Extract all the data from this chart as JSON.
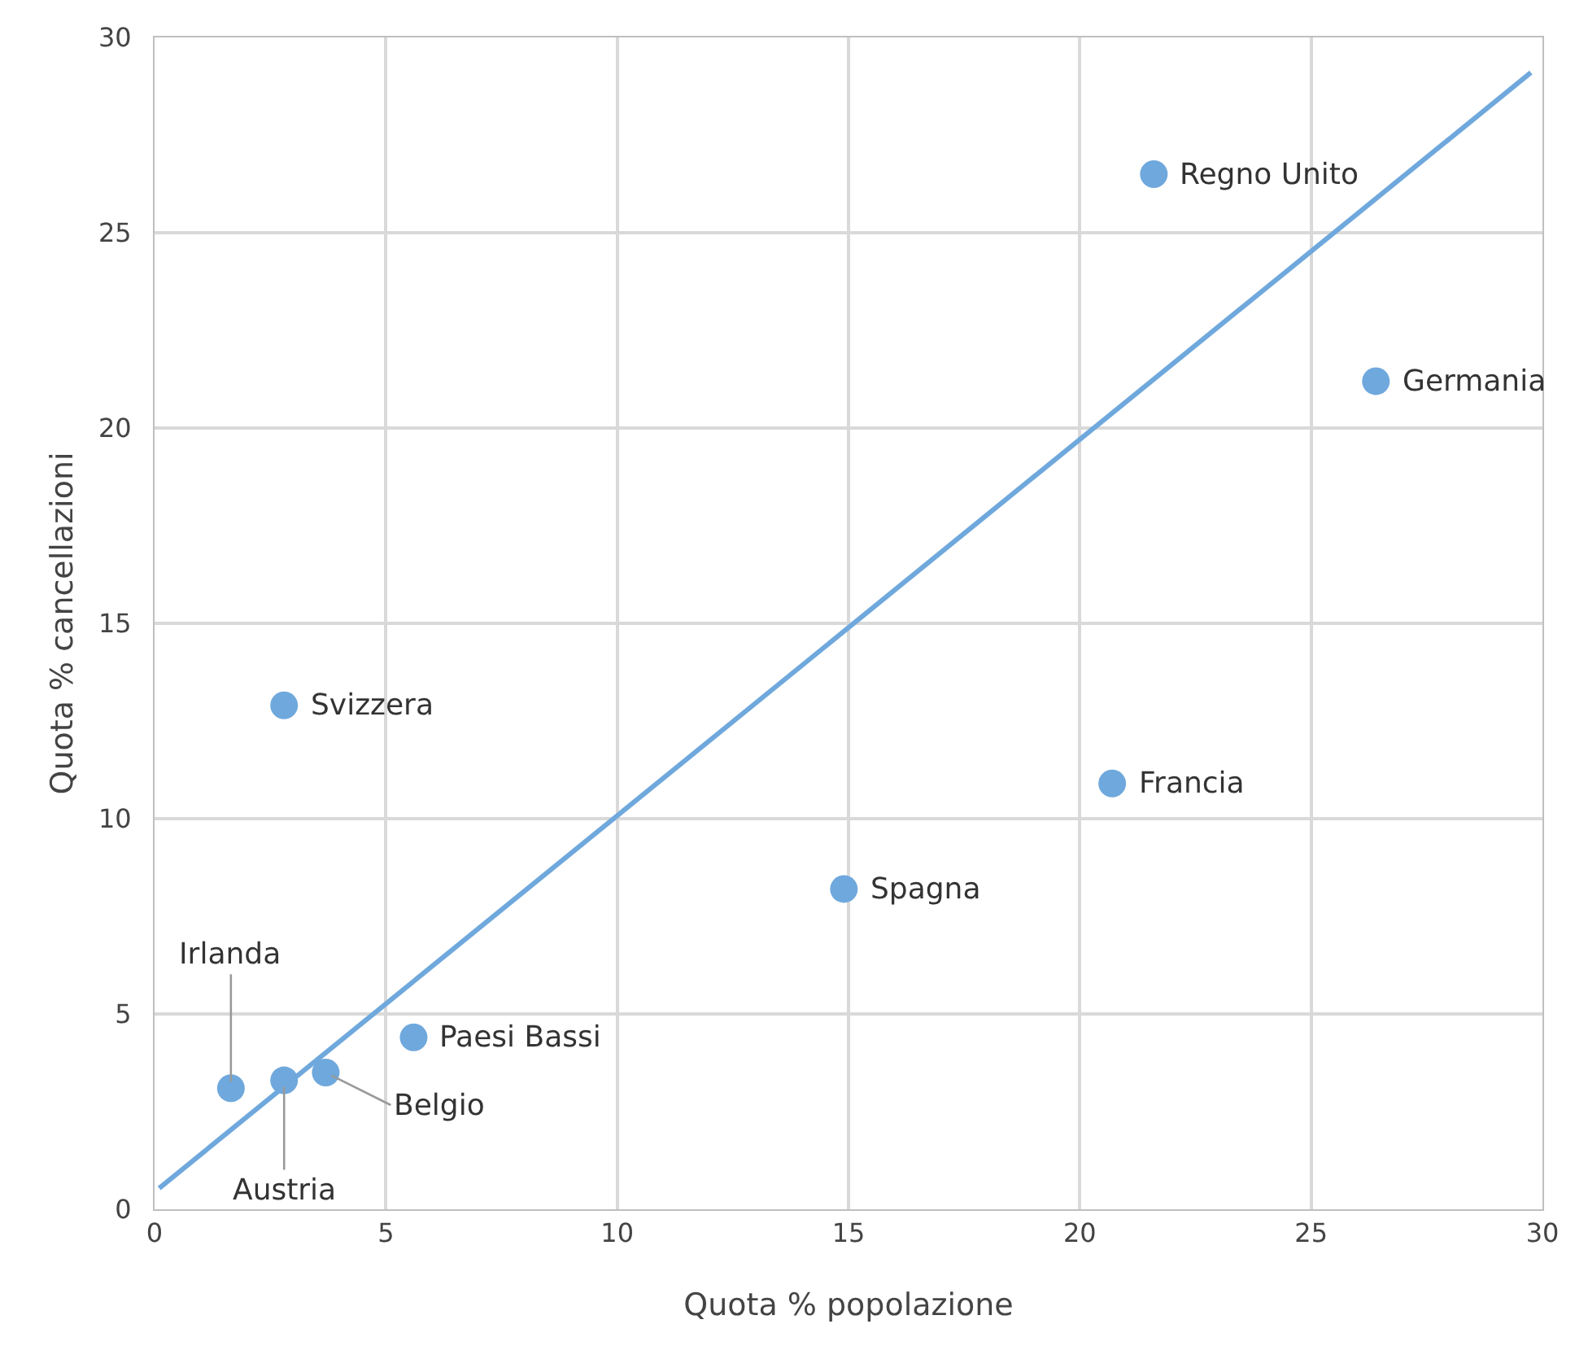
{
  "chart_data": {
    "type": "scatter",
    "xlabel": "Quota % popolazione",
    "ylabel": "Quota % cancellazioni",
    "series": [
      {
        "marker": "circle",
        "color": "#6fa8dc",
        "x": [
          21.6,
          26.4,
          2.8,
          20.7,
          14.9,
          5.6,
          1.65,
          2.8,
          3.7
        ],
        "values": [
          26.5,
          21.2,
          12.9,
          10.9,
          8.2,
          4.4,
          3.1,
          3.3,
          3.5
        ]
      },
      {
        "type": "line",
        "color": "#6fa8dc",
        "x": [
          0.1,
          29.75
        ],
        "values": [
          0.54,
          29.1
        ]
      }
    ],
    "annotations": [
      {
        "text": "Regno Unito",
        "x": 21.6,
        "y": 26.5
      },
      {
        "text": "Germania",
        "x": 26.4,
        "y": 21.2
      },
      {
        "text": "Svizzera",
        "x": 2.8,
        "y": 12.9
      },
      {
        "text": "Francia",
        "x": 20.7,
        "y": 10.9
      },
      {
        "text": "Spagna",
        "x": 14.9,
        "y": 8.2
      },
      {
        "text": "Paesi Bassi",
        "x": 5.6,
        "y": 4.4
      },
      {
        "text": "Irlanda",
        "x": 1.65,
        "y": 3.1
      },
      {
        "text": "Austria",
        "x": 2.8,
        "y": 3.3
      },
      {
        "text": "Belgio",
        "x": 3.7,
        "y": 3.5
      }
    ],
    "xlim": [
      0,
      30
    ],
    "xticks": [
      0,
      5,
      10,
      15,
      20,
      25,
      30
    ],
    "ylim": [
      0,
      30
    ],
    "yticks": [
      0,
      5,
      10,
      15,
      20,
      25,
      30
    ],
    "grid": true,
    "line_style": "solid"
  }
}
